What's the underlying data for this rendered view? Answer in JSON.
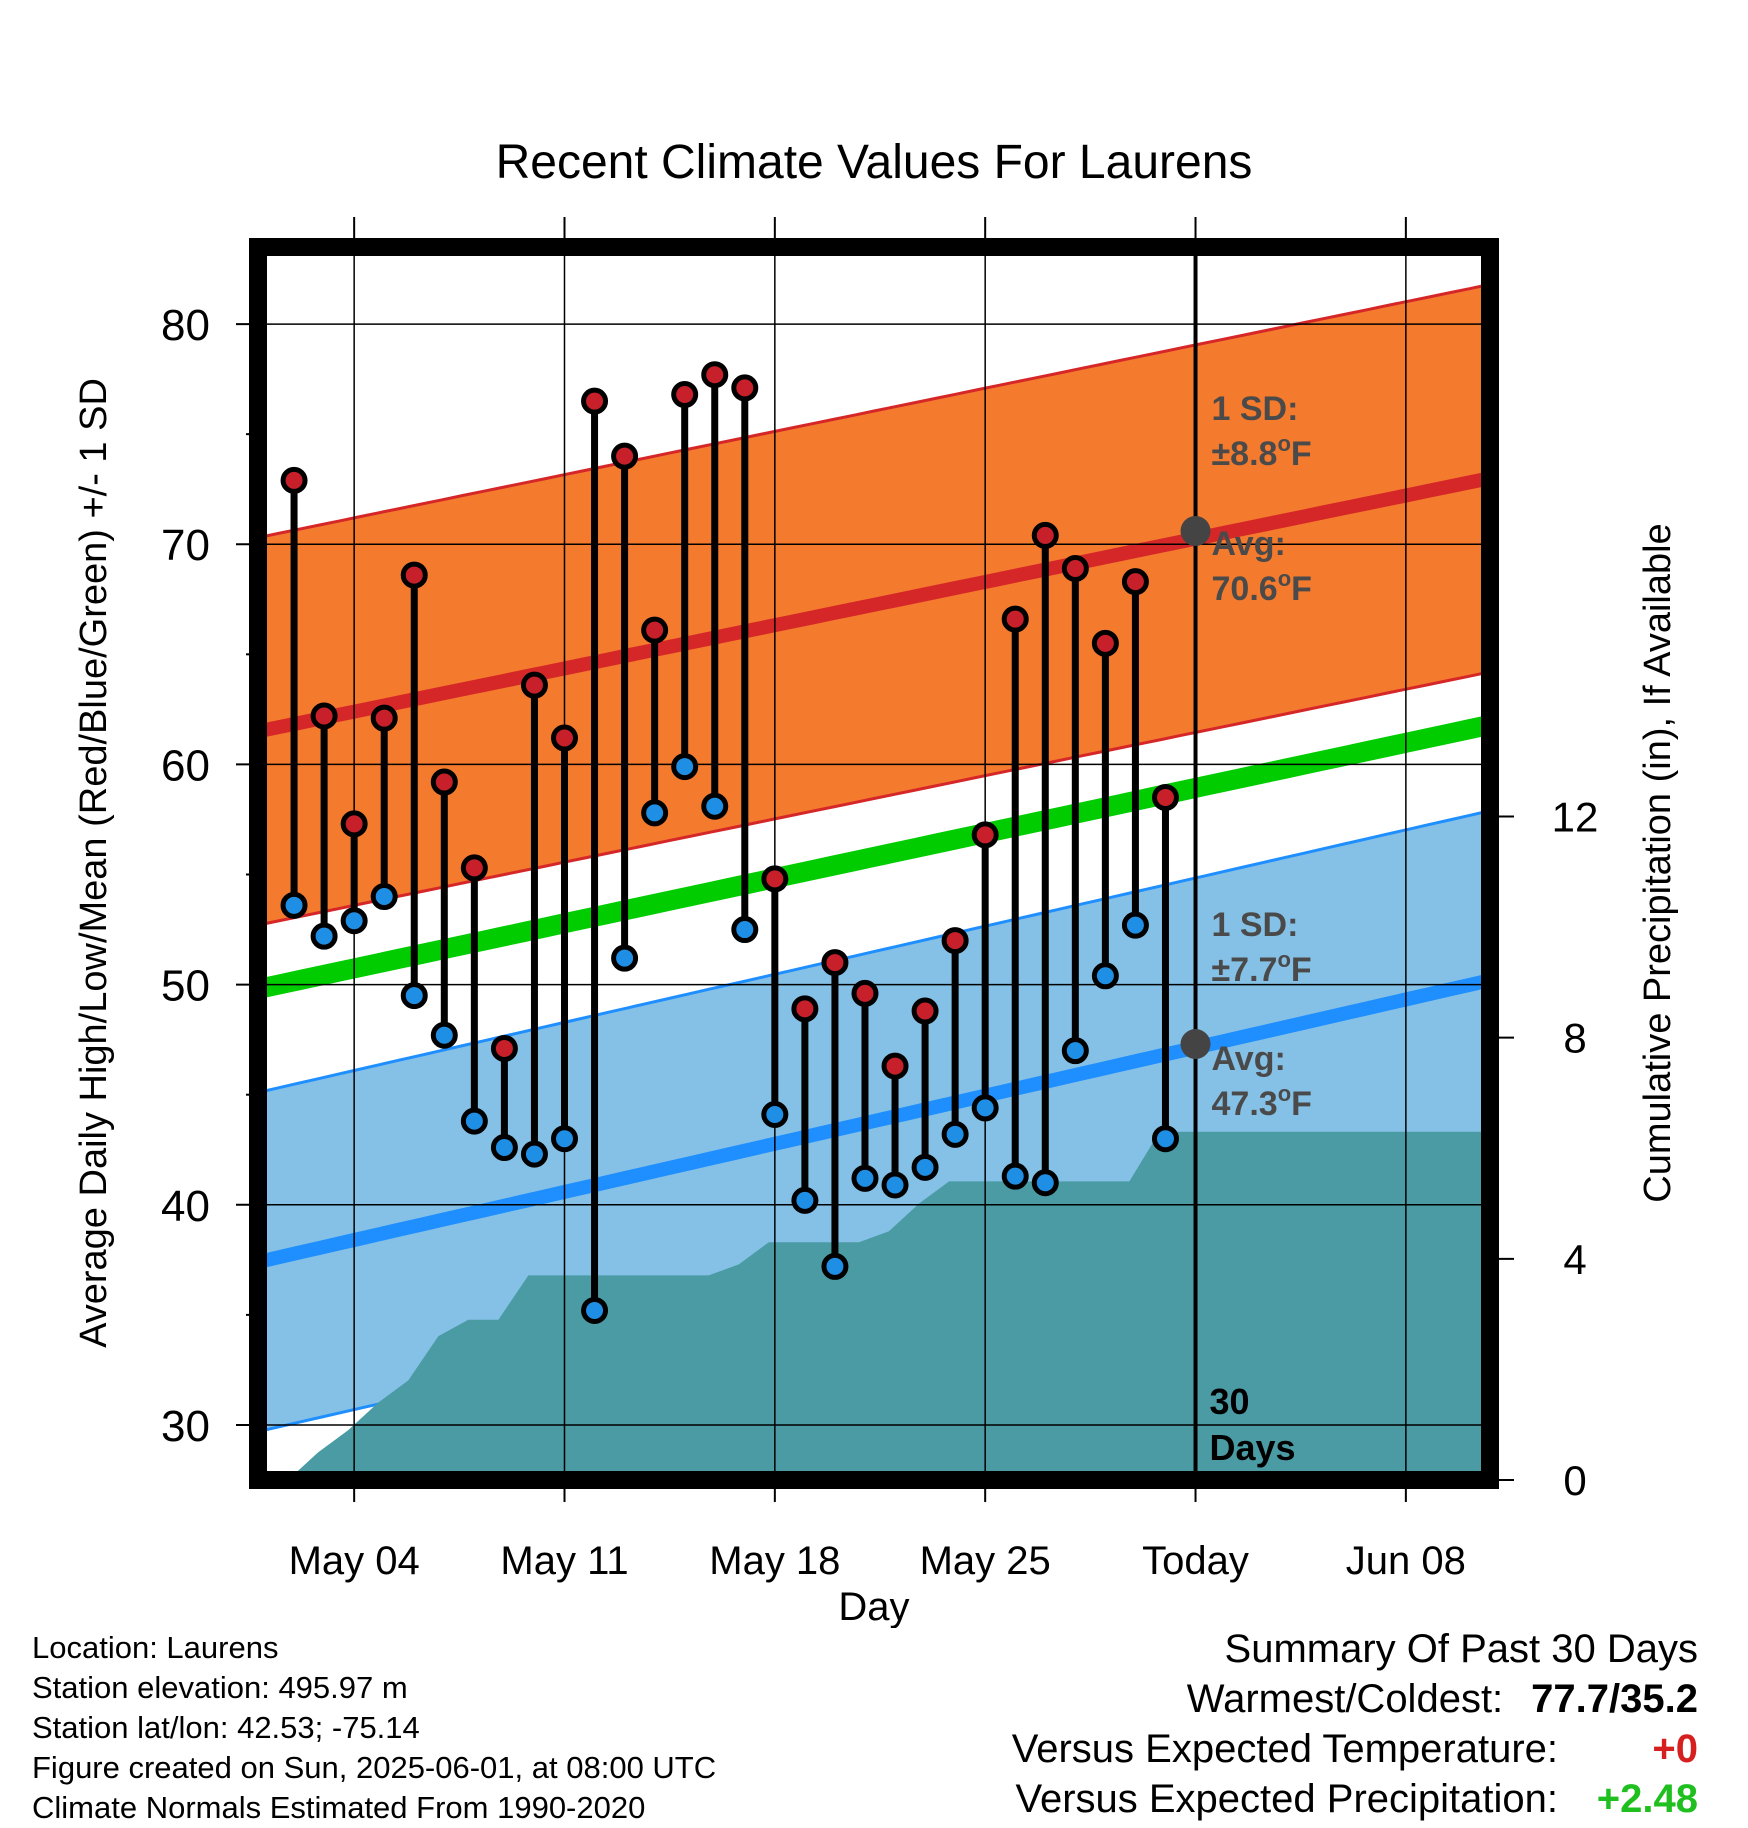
{
  "chart_data": {
    "type": "line",
    "title": "Recent Climate Values For Laurens",
    "xlabel": "Day",
    "ylabel_left": "Average Daily High/Low/Mean (Red/Blue/Green) +/- 1 SD",
    "ylabel_right": "Cumulative Precipitation (in), If Available",
    "x_tick_labels": [
      "May 04",
      "May 11",
      "May 18",
      "May 25",
      "Today",
      "Jun 08"
    ],
    "y_left_ticks": [
      30,
      40,
      50,
      60,
      70,
      80
    ],
    "y_right_ticks": [
      0,
      4,
      8,
      12
    ],
    "y_left_range": [
      27.5,
      83.5
    ],
    "y_right_range": [
      0,
      22.3
    ],
    "x_range_days_before_today": [
      -31.2,
      9.8
    ],
    "grid": true,
    "days_before_today": [
      -30,
      -29,
      -28,
      -27,
      -26,
      -25,
      -24,
      -23,
      -22,
      -21,
      -20,
      -19,
      -18,
      -17,
      -16,
      -15,
      -14,
      -13,
      -12,
      -11,
      -10,
      -9,
      -8,
      -7,
      -6,
      -5,
      -4,
      -3,
      -2,
      -1
    ],
    "series": [
      {
        "name": "High",
        "color": "#c8202a",
        "values": [
          72.9,
          62.2,
          57.3,
          62.1,
          68.6,
          59.2,
          55.3,
          47.1,
          63.6,
          61.2,
          76.5,
          74.0,
          66.1,
          76.8,
          77.7,
          77.1,
          54.8,
          48.9,
          51.0,
          49.6,
          46.3,
          48.8,
          52.0,
          56.8,
          66.6,
          70.4,
          68.9,
          65.5,
          68.3,
          58.5
        ]
      },
      {
        "name": "Low",
        "color": "#1f8fe6",
        "values": [
          53.6,
          52.2,
          52.9,
          54.0,
          49.5,
          47.7,
          43.8,
          42.6,
          42.3,
          43.0,
          35.2,
          51.2,
          57.8,
          59.9,
          58.1,
          52.5,
          44.1,
          40.2,
          37.2,
          41.2,
          40.9,
          41.7,
          43.2,
          44.4,
          41.3,
          41.0,
          47.0,
          50.4,
          52.7,
          43.0
        ]
      }
    ],
    "normal_high": {
      "start": 61.5,
      "end": 73.0,
      "sd": 8.8,
      "avg_today": 70.6
    },
    "normal_low": {
      "start": 37.4,
      "end": 50.2,
      "sd": 7.7,
      "avg_today": 47.3
    },
    "normal_mean": {
      "start": 49.8,
      "end": 61.8
    },
    "precipitation_cumulative": [
      0.0,
      0.5,
      0.9,
      1.4,
      1.8,
      2.6,
      2.9,
      2.9,
      3.7,
      3.7,
      3.7,
      3.7,
      3.7,
      3.7,
      3.7,
      3.9,
      4.3,
      4.3,
      4.3,
      4.3,
      4.5,
      5.0,
      5.4,
      5.4,
      5.4,
      5.4,
      5.4,
      5.4,
      5.4,
      6.3,
      6.3
    ],
    "annotations": {
      "high_sd_label": "1 SD:",
      "high_sd_value": "±8.8°F",
      "high_avg_label": "Avg:",
      "high_avg_value": "70.6°F",
      "low_sd_label": "1 SD:",
      "low_sd_value": "±7.7°F",
      "low_avg_label": "Avg:",
      "low_avg_value": "47.3°F",
      "period_count": "30",
      "period_unit": "Days"
    },
    "colors": {
      "high_band": "#f47a2e",
      "high_line": "#d62728",
      "low_band": "#85c1e6",
      "low_line": "#1f8fff",
      "mean_line": "#00cc00",
      "precip_fill": "#4a9ba3",
      "today_marker": "#444444"
    }
  },
  "footer": {
    "location": "Location: Laurens",
    "elevation": "Station elevation: 495.97 m",
    "latlon": "Station lat/lon: 42.53; -75.14",
    "created": "Figure created on Sun, 2025-06-01, at 08:00 UTC",
    "normals": "Climate Normals Estimated From 1990-2020"
  },
  "summary": {
    "heading": "Summary Of Past 30 Days",
    "warmest_label": "Warmest/Coldest:",
    "warmest_value": "77.7/35.2",
    "temp_label": "Versus Expected Temperature:",
    "temp_value": "+0",
    "precip_label": "Versus Expected Precipitation:",
    "precip_value": "+2.48"
  }
}
